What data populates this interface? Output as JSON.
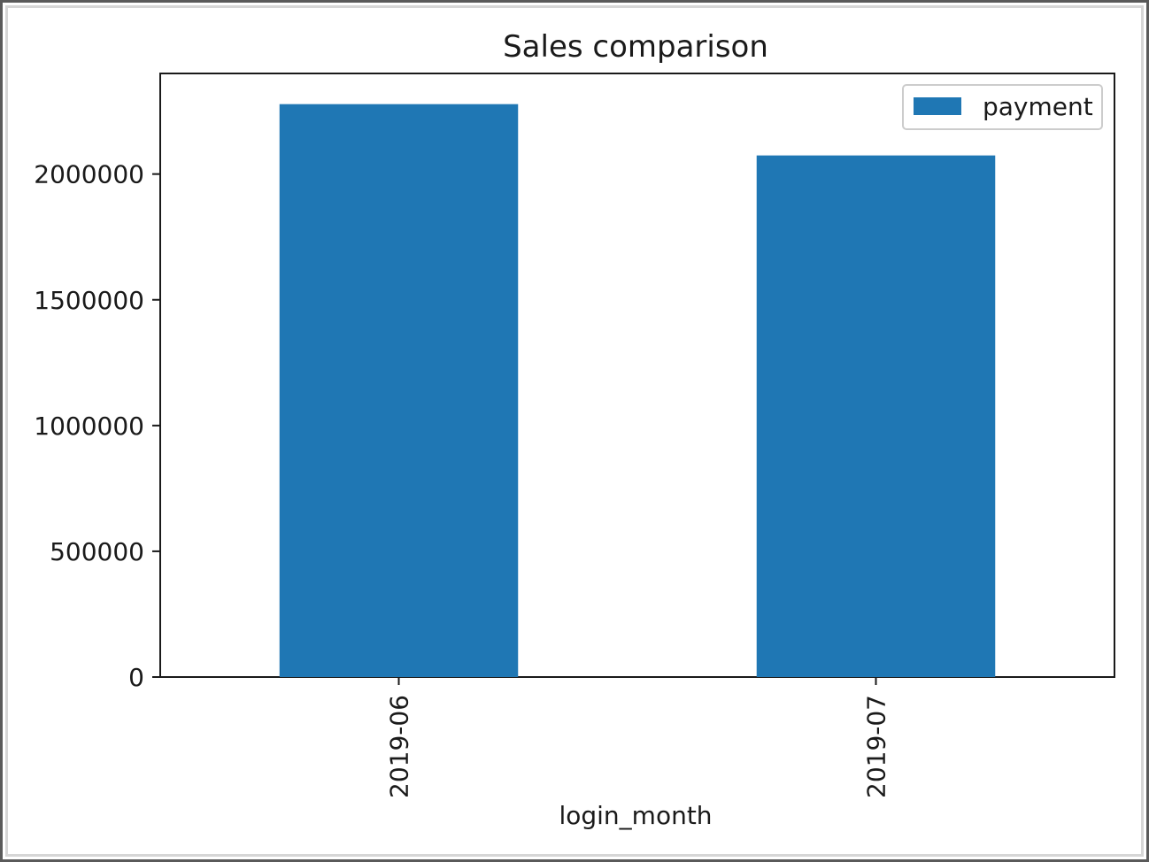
{
  "chart_data": {
    "type": "bar",
    "title": "Sales comparison",
    "xlabel": "login_month",
    "ylabel": "",
    "categories": [
      "2019-06",
      "2019-07"
    ],
    "series": [
      {
        "name": "payment",
        "values": [
          2278000,
          2074000
        ],
        "color": "#1f77b4"
      }
    ],
    "ylim": [
      0,
      2400000
    ],
    "yticks": [
      0,
      500000,
      1000000,
      1500000,
      2000000
    ],
    "ytick_labels": [
      "0",
      "500000",
      "1000000",
      "1500000",
      "2000000"
    ],
    "xtick_rotation": "vertical",
    "grid": false,
    "legend": {
      "position": "upper right",
      "entries": [
        "payment"
      ]
    }
  }
}
